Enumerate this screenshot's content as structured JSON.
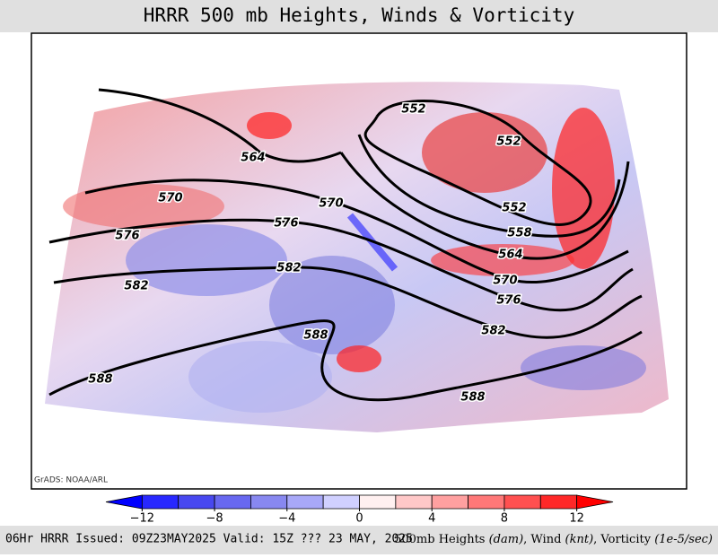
{
  "header": {
    "title": "HRRR 500 mb Heights, Winds & Vorticity"
  },
  "map": {
    "credit": "GrADS: NOAA/ARL",
    "contour_labels": [
      "564",
      "570",
      "576",
      "582",
      "588",
      "570",
      "576",
      "582",
      "588",
      "552",
      "552",
      "552",
      "558",
      "564",
      "570",
      "576",
      "582",
      "588"
    ]
  },
  "colorbar": {
    "bounds": [
      -14,
      -12,
      -10,
      -8,
      -6,
      -4,
      -2,
      0,
      2,
      4,
      6,
      8,
      10,
      12,
      14
    ],
    "colors": [
      "#0000ff",
      "#2828ff",
      "#4848f0",
      "#6868f0",
      "#8888f0",
      "#a8a8f8",
      "#d0d0ff",
      "#fff0f0",
      "#ffc8c8",
      "#ffa0a0",
      "#ff7878",
      "#ff5050",
      "#ff2828",
      "#ff0000"
    ],
    "ticks": [
      {
        "value": -12,
        "label": "−12"
      },
      {
        "value": -8,
        "label": "−8"
      },
      {
        "value": -4,
        "label": "−4"
      },
      0,
      4,
      8,
      12
    ]
  },
  "footer": {
    "left": "06Hr HRRR Issued: 09Z23MAY2025 Valid: 15Z ??? 23 MAY, 2025",
    "right": [
      {
        "text": "500mb Heights ",
        "italic": false
      },
      {
        "text": "(dam)",
        "italic": true
      },
      {
        "text": ", Wind ",
        "italic": false
      },
      {
        "text": "(knt)",
        "italic": true
      },
      {
        "text": ", Vorticity ",
        "italic": false
      },
      {
        "text": "(1e-5/sec)",
        "italic": true
      }
    ]
  }
}
